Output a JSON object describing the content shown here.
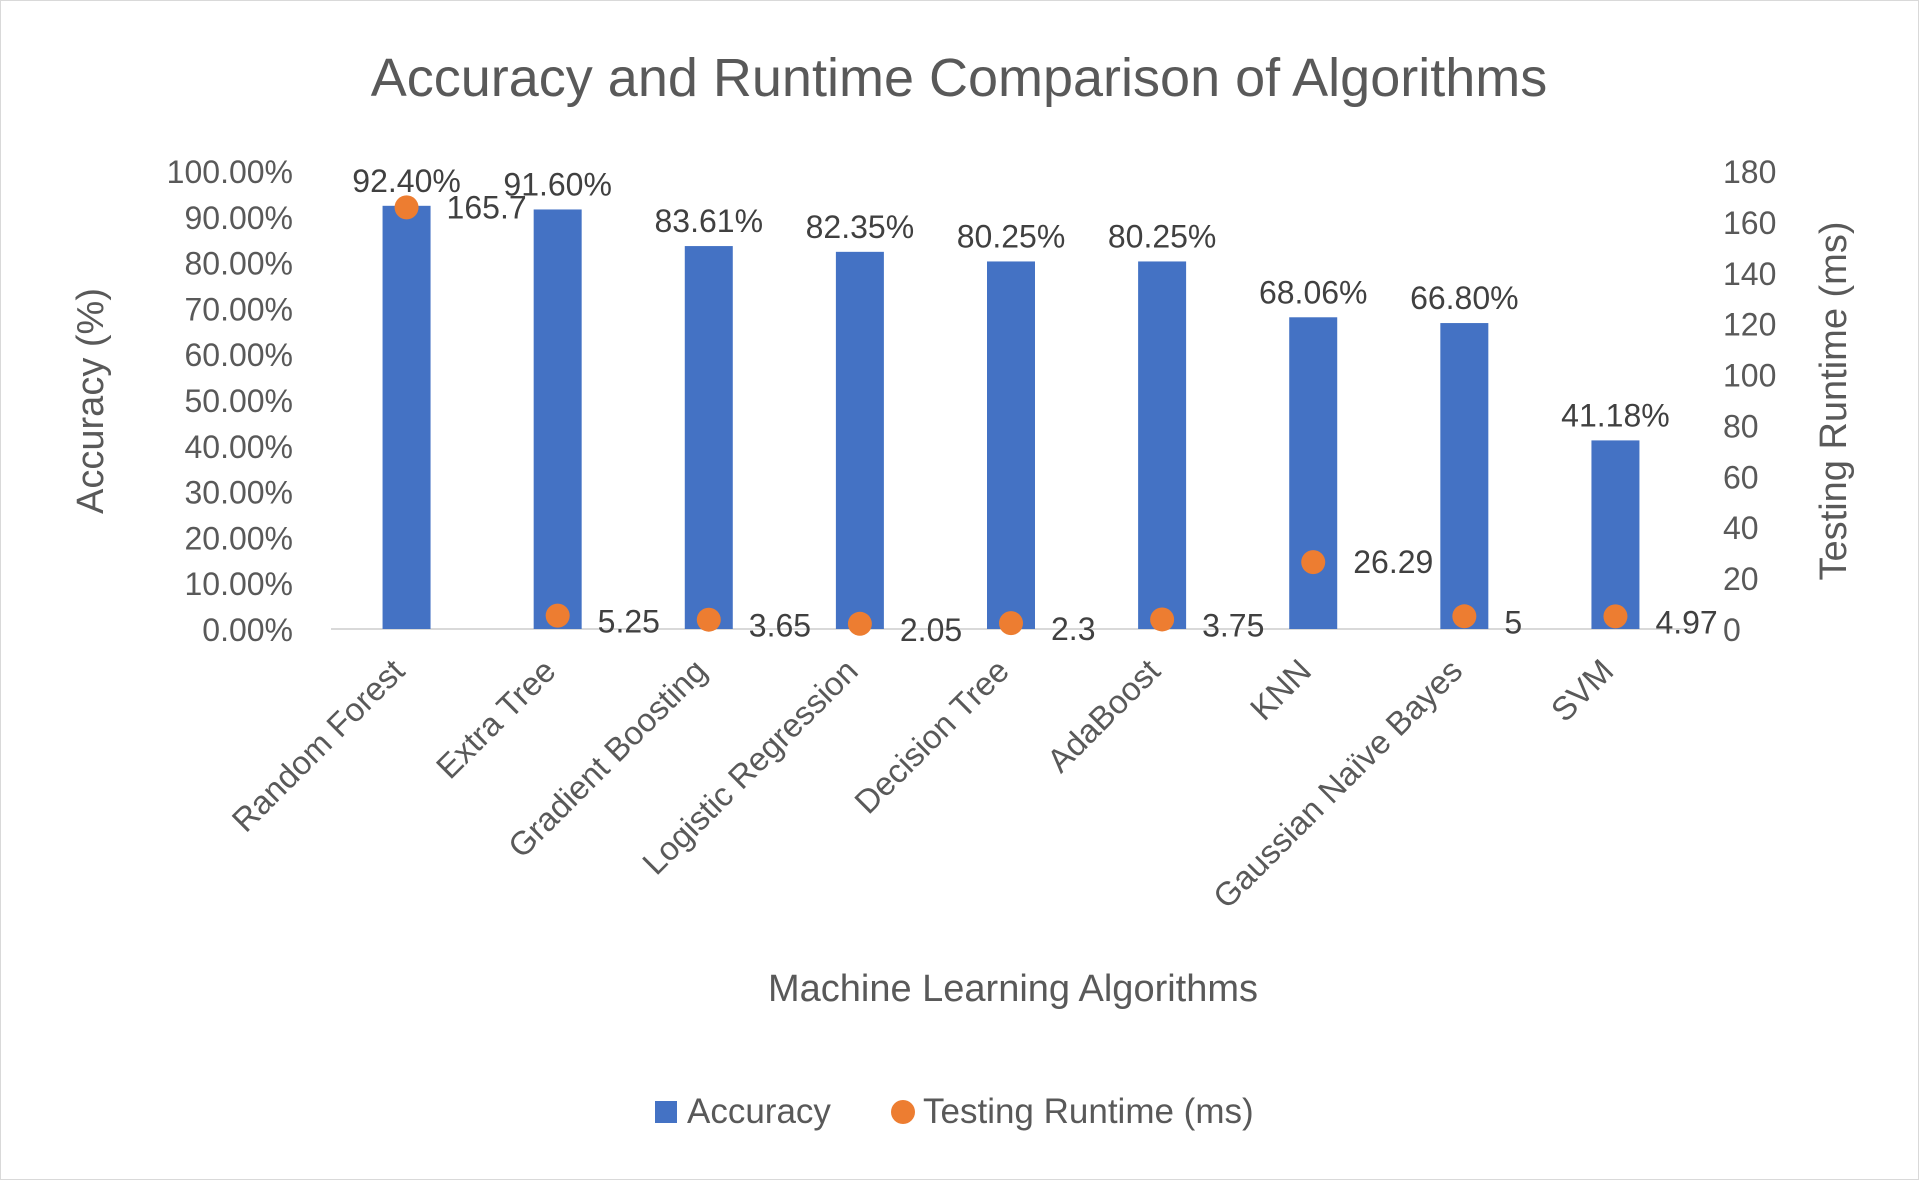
{
  "chart_data": {
    "type": "bar",
    "title": "Accuracy and Runtime Comparison of Algorithms",
    "xlabel": "Machine Learning Algorithms",
    "ylabel": "Accuracy (%)",
    "y2label": "Testing Runtime (ms)",
    "categories": [
      "Random Forest",
      "Extra Tree",
      "Gradient Boosting",
      "Logistic Regression",
      "Decision Tree",
      "AdaBoost",
      "KNN",
      "Gaussian Naïve Bayes",
      "SVM"
    ],
    "series": [
      {
        "name": "Accuracy",
        "type": "bar",
        "axis": "left",
        "color": "#4472C4",
        "values": [
          92.4,
          91.6,
          83.61,
          82.35,
          80.25,
          80.25,
          68.06,
          66.8,
          41.18
        ],
        "labels": [
          "92.40%",
          "91.60%",
          "83.61%",
          "82.35%",
          "80.25%",
          "80.25%",
          "68.06%",
          "66.80%",
          "41.18%"
        ]
      },
      {
        "name": "Testing Runtime (ms)",
        "type": "scatter",
        "axis": "right",
        "color": "#ED7D31",
        "values": [
          165.7,
          5.25,
          3.65,
          2.05,
          2.3,
          3.75,
          26.29,
          5,
          4.97
        ],
        "labels": [
          "165.7",
          "5.25",
          "3.65",
          "2.05",
          "2.3",
          "3.75",
          "26.29",
          "5",
          "4.97"
        ]
      }
    ],
    "ylim": [
      0,
      100
    ],
    "y_ticks": [
      "0.00%",
      "10.00%",
      "20.00%",
      "30.00%",
      "40.00%",
      "50.00%",
      "60.00%",
      "70.00%",
      "80.00%",
      "90.00%",
      "100.00%"
    ],
    "y2lim": [
      0,
      180
    ],
    "y2_ticks": [
      "0",
      "20",
      "40",
      "60",
      "80",
      "100",
      "120",
      "140",
      "160",
      "180"
    ],
    "legend": {
      "position": "bottom",
      "items": [
        "Accuracy",
        "Testing Runtime (ms)"
      ]
    },
    "grid": false,
    "text_color": "#595959",
    "label_color": "#404040"
  }
}
